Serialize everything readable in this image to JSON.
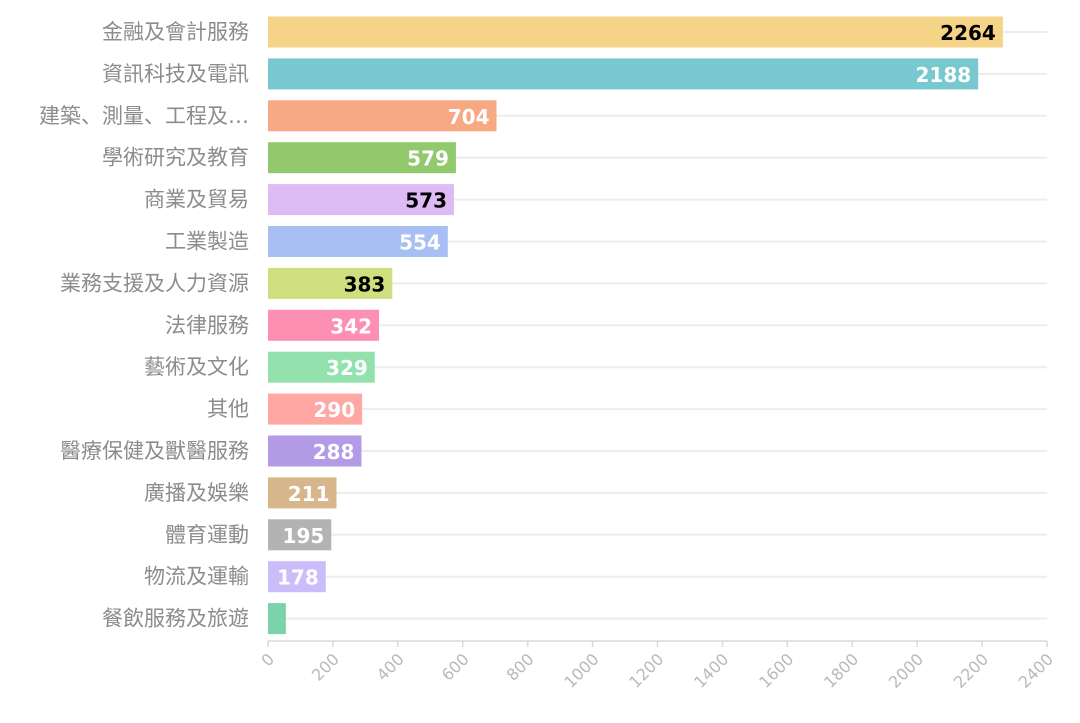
{
  "chart_data": {
    "type": "bar",
    "orientation": "horizontal",
    "categories": [
      "金融及會計服務",
      "資訊科技及電訊",
      "建築、測量、工程及…",
      "學術研究及教育",
      "商業及貿易",
      "工業製造",
      "業務支援及人力資源",
      "法律服務",
      "藝術及文化",
      "其他",
      "醫療保健及獸醫服務",
      "廣播及娛樂",
      "體育運動",
      "物流及運輸",
      "餐飲服務及旅遊"
    ],
    "values": [
      2264,
      2188,
      704,
      579,
      573,
      554,
      383,
      342,
      329,
      290,
      288,
      211,
      195,
      178,
      55
    ],
    "value_labels": [
      "2264",
      "2188",
      "704",
      "579",
      "573",
      "554",
      "383",
      "342",
      "329",
      "290",
      "288",
      "211",
      "195",
      "178",
      ""
    ],
    "colors": [
      "#f6d487",
      "#77c9cf",
      "#f7a983",
      "#91c96c",
      "#debbf4",
      "#a8bff3",
      "#d0df7d",
      "#fd8fb3",
      "#93e1ac",
      "#fea7a3",
      "#b39be6",
      "#d7b68c",
      "#b3b3b3",
      "#cbbdfa",
      "#7ad3aa"
    ],
    "label_colors": [
      "#000000",
      "#ffffff",
      "#ffffff",
      "#ffffff",
      "#000000",
      "#ffffff",
      "#000000",
      "#ffffff",
      "#ffffff",
      "#ffffff",
      "#ffffff",
      "#ffffff",
      "#ffffff",
      "#ffffff",
      "#ffffff"
    ],
    "xlim": [
      0,
      2400
    ],
    "xticks": [
      "0",
      "200",
      "400",
      "600",
      "800",
      "1000",
      "1200",
      "1400",
      "1600",
      "1800",
      "2000",
      "2200",
      "2400"
    ],
    "grid": "horizontal",
    "legend": "none"
  }
}
